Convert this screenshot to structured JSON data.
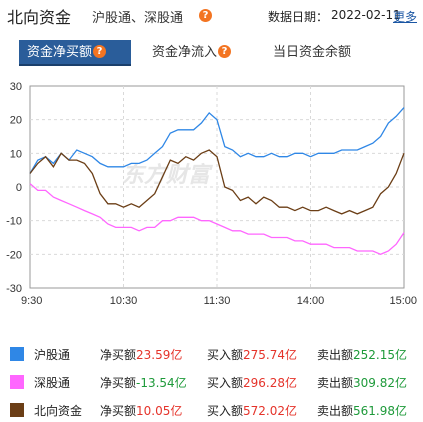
{
  "header": {
    "title": "北向资金",
    "subtitle": "沪股通、深股通",
    "help_icon": "?",
    "date_label": "数据日期：",
    "date_value": "2022-02-11",
    "more_link": "更多"
  },
  "tabs": [
    {
      "label": "资金净买额",
      "active": true,
      "has_help": true
    },
    {
      "label": "资金净流入",
      "active": false,
      "has_help": true
    },
    {
      "label": "当日资金余额",
      "active": false,
      "has_help": false
    }
  ],
  "watermark": "东方财富",
  "legend": [
    {
      "name": "沪股通",
      "color": "#2f87e6",
      "net_label": "净买额",
      "net_value": "23.59亿",
      "net_dir": "up",
      "buy_label": "买入额",
      "buy_value": "275.74亿",
      "buy_dir": "up",
      "sell_label": "卖出额",
      "sell_value": "252.15亿",
      "sell_dir": "down"
    },
    {
      "name": "深股通",
      "color": "#ff66ff",
      "net_label": "净买额",
      "net_value": "-13.54亿",
      "net_dir": "down",
      "buy_label": "买入额",
      "buy_value": "296.28亿",
      "buy_dir": "up",
      "sell_label": "卖出额",
      "sell_value": "309.82亿",
      "sell_dir": "down"
    },
    {
      "name": "北向资金",
      "color": "#6b3e16",
      "net_label": "净买额",
      "net_value": "10.05亿",
      "net_dir": "up",
      "buy_label": "买入额",
      "buy_value": "572.02亿",
      "buy_dir": "up",
      "sell_label": "卖出额",
      "sell_value": "561.98亿",
      "sell_dir": "down"
    }
  ],
  "chart_data": {
    "type": "line",
    "title": "",
    "xlabel": "",
    "ylabel": "",
    "x_ticks": [
      "9:30",
      "10:30",
      "11:30",
      "14:00",
      "15:00"
    ],
    "y_ticks": [
      30,
      20,
      10,
      0,
      -10,
      -20,
      -30
    ],
    "ylim": [
      -30,
      30
    ],
    "grid": true,
    "x": [
      "9:30",
      "9:35",
      "9:40",
      "9:45",
      "9:50",
      "9:55",
      "10:00",
      "10:05",
      "10:10",
      "10:15",
      "10:20",
      "10:25",
      "10:30",
      "10:35",
      "10:40",
      "10:45",
      "10:50",
      "10:55",
      "11:00",
      "11:05",
      "11:10",
      "11:15",
      "11:20",
      "11:25",
      "11:30",
      "13:05",
      "13:10",
      "13:15",
      "13:20",
      "13:25",
      "13:30",
      "13:35",
      "13:40",
      "13:45",
      "13:50",
      "13:55",
      "14:00",
      "14:05",
      "14:10",
      "14:15",
      "14:20",
      "14:25",
      "14:30",
      "14:35",
      "14:40",
      "14:45",
      "14:50",
      "14:55",
      "15:00"
    ],
    "series": [
      {
        "name": "沪股通",
        "color": "#2f87e6",
        "values": [
          4,
          8,
          9,
          7,
          10,
          8,
          11,
          10,
          9,
          7,
          6,
          6,
          6,
          7,
          7,
          8,
          10,
          12,
          16,
          17,
          17,
          17,
          19,
          22,
          20,
          12,
          11,
          9,
          10,
          9,
          9,
          10,
          9,
          9,
          10,
          10,
          9,
          10,
          10,
          10,
          11,
          11,
          11,
          12,
          13,
          15,
          19,
          21,
          23.59
        ]
      },
      {
        "name": "深股通",
        "color": "#ff66ff",
        "values": [
          1,
          -1,
          -1,
          -3,
          -4,
          -5,
          -6,
          -7,
          -8,
          -9,
          -11,
          -12,
          -12,
          -12,
          -13,
          -12,
          -12,
          -10,
          -10,
          -9,
          -9,
          -9,
          -10,
          -10,
          -11,
          -12,
          -13,
          -13,
          -14,
          -14,
          -14,
          -15,
          -15,
          -15,
          -16,
          -16,
          -17,
          -17,
          -17,
          -18,
          -18,
          -18,
          -19,
          -19,
          -19,
          -20,
          -19,
          -17,
          -13.54
        ]
      },
      {
        "name": "北向资金",
        "color": "#6b3e16",
        "values": [
          4,
          7,
          9,
          6,
          10,
          8,
          8,
          7,
          4,
          -2,
          -5,
          -5,
          -6,
          -5,
          -6,
          -4,
          -2,
          3,
          8,
          7,
          9,
          8,
          10,
          11,
          9,
          0,
          -1,
          -4,
          -3,
          -5,
          -3,
          -4,
          -6,
          -6,
          -7,
          -6,
          -7,
          -7,
          -6,
          -7,
          -8,
          -7,
          -8,
          -7,
          -6,
          -2,
          0,
          4,
          10.05
        ]
      }
    ]
  }
}
